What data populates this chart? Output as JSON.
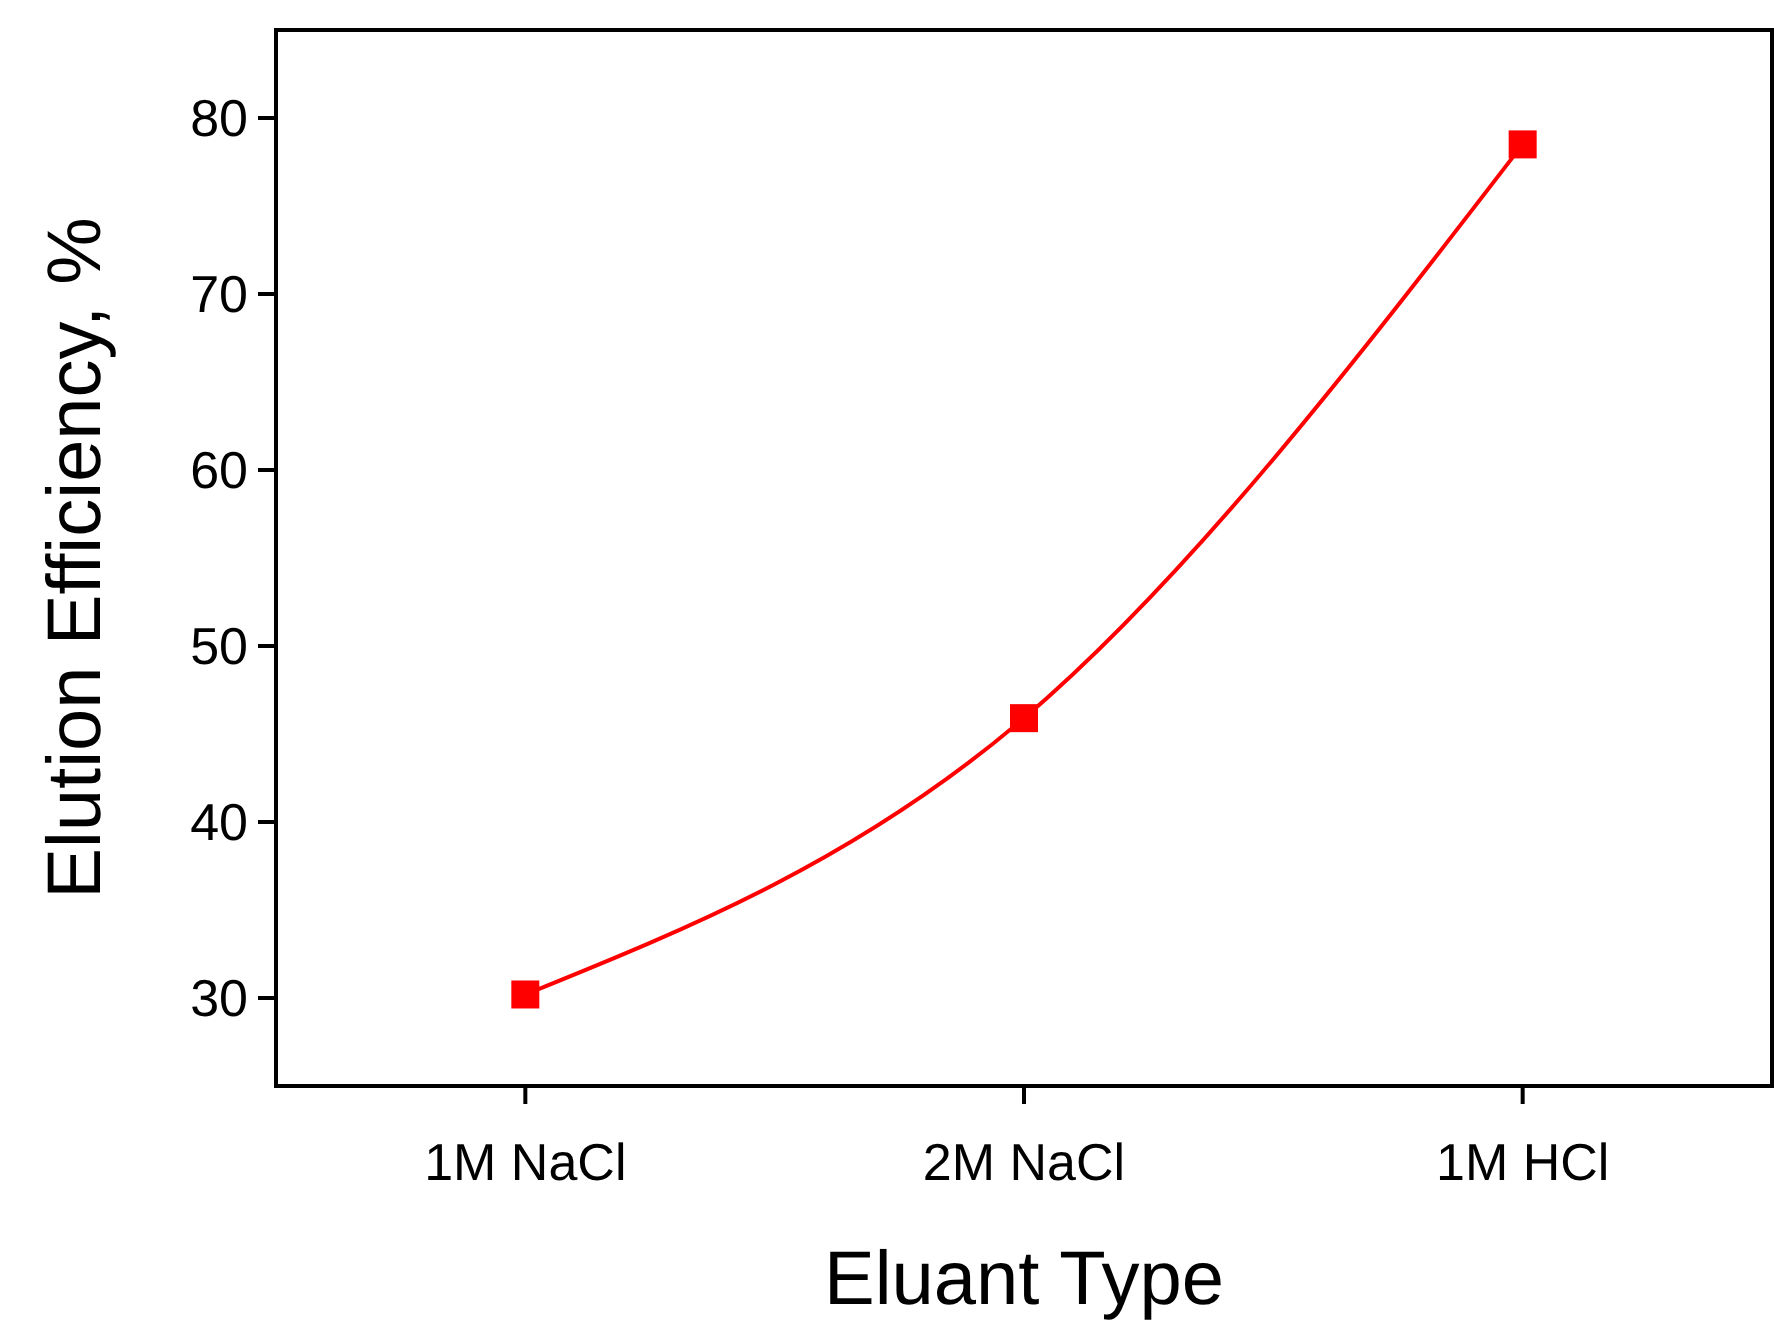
{
  "chart_data": {
    "type": "line",
    "xlabel": "Eluant Type",
    "ylabel": "Elution Efficiency, %",
    "categories": [
      "1M NaCl",
      "2M NaCl",
      "1M HCl"
    ],
    "series": [
      {
        "color": "#ff0000",
        "values": [
          30.2,
          45.9,
          78.5
        ]
      }
    ],
    "ylim": [
      25,
      85
    ],
    "yticks": [
      30,
      40,
      50,
      60,
      70,
      80
    ],
    "grid": false,
    "marker": "square",
    "line_style": "solid"
  }
}
